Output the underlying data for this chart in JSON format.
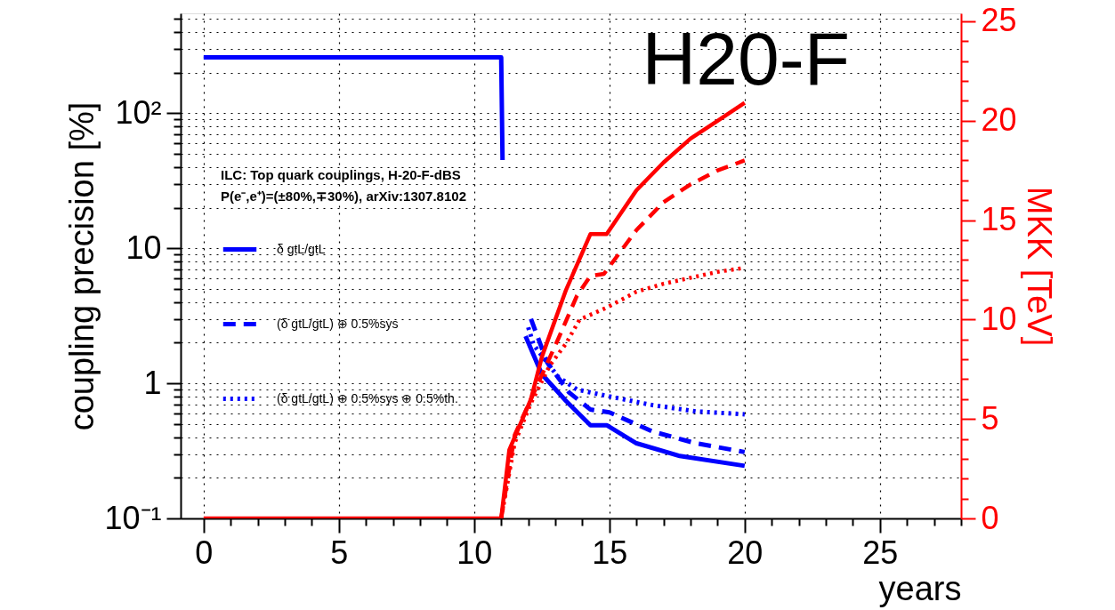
{
  "chart_data": {
    "type": "line",
    "xlabel": "years",
    "ylabel": "coupling precision [%]",
    "y2label": "MKK [TeV]",
    "legend_title": "ILC: Top quark couplings, H-20-F-dBS\nP(e⁻,e⁺)=(±80%,∓30%), arXiv:1307.8102",
    "legend": "left",
    "log": "y",
    "grid": true,
    "annotations": [
      "H20-F"
    ],
    "xlim": [
      -0.85,
      28
    ],
    "xticks": [
      0,
      {
        "value": 1,
        "label": null
      },
      {
        "value": 2,
        "label": null
      },
      {
        "value": 3,
        "label": null
      },
      {
        "value": 4,
        "label": null
      },
      5,
      {
        "value": 6,
        "label": null
      },
      {
        "value": 7,
        "label": null
      },
      {
        "value": 8,
        "label": null
      },
      {
        "value": 9,
        "label": null
      },
      10,
      {
        "value": 11,
        "label": null
      },
      {
        "value": 12,
        "label": null
      },
      {
        "value": 13,
        "label": null
      },
      {
        "value": 14,
        "label": null
      },
      15,
      {
        "value": 16,
        "label": null
      },
      {
        "value": 17,
        "label": null
      },
      {
        "value": 18,
        "label": null
      },
      {
        "value": 19,
        "label": null
      },
      20,
      {
        "value": 21,
        "label": null
      },
      {
        "value": 22,
        "label": null
      },
      {
        "value": 23,
        "label": null
      },
      {
        "value": 24,
        "label": null
      },
      25,
      {
        "value": 26,
        "label": null
      },
      {
        "value": 27,
        "label": null
      },
      {
        "value": 28,
        "label": null
      }
    ],
    "ylim": [
      0.1,
      550
    ],
    "yticks": [
      {
        "value": 0.1,
        "label": "10⁻¹"
      },
      {
        "value": 0.2,
        "label": null
      },
      {
        "value": 0.3,
        "label": null
      },
      {
        "value": 0.4,
        "label": null
      },
      {
        "value": 0.5,
        "label": null
      },
      {
        "value": 0.6,
        "label": null
      },
      {
        "value": 0.7,
        "label": null
      },
      {
        "value": 0.8,
        "label": null
      },
      {
        "value": 0.9,
        "label": null
      },
      1,
      {
        "value": 2,
        "label": null
      },
      {
        "value": 3,
        "label": null
      },
      {
        "value": 4,
        "label": null
      },
      {
        "value": 5,
        "label": null
      },
      {
        "value": 6,
        "label": null
      },
      {
        "value": 7,
        "label": null
      },
      {
        "value": 8,
        "label": null
      },
      {
        "value": 9,
        "label": null
      },
      10,
      {
        "value": 20,
        "label": null
      },
      {
        "value": 30,
        "label": null
      },
      {
        "value": 40,
        "label": null
      },
      {
        "value": 50,
        "label": null
      },
      {
        "value": 60,
        "label": null
      },
      {
        "value": 70,
        "label": null
      },
      {
        "value": 80,
        "label": null
      },
      {
        "value": 90,
        "label": null
      },
      {
        "value": 100,
        "label": "10²"
      },
      {
        "value": 200,
        "label": null
      },
      {
        "value": 300,
        "label": null
      },
      {
        "value": 400,
        "label": null
      },
      {
        "value": 500,
        "label": null
      }
    ],
    "y2lim": [
      0,
      25.4
    ],
    "y2ticks": [
      0,
      {
        "value": 1,
        "label": null
      },
      {
        "value": 2,
        "label": null
      },
      {
        "value": 3,
        "label": null
      },
      {
        "value": 4,
        "label": null
      },
      5,
      {
        "value": 6,
        "label": null
      },
      {
        "value": 7,
        "label": null
      },
      {
        "value": 8,
        "label": null
      },
      {
        "value": 9,
        "label": null
      },
      10,
      {
        "value": 11,
        "label": null
      },
      {
        "value": 12,
        "label": null
      },
      {
        "value": 13,
        "label": null
      },
      {
        "value": 14,
        "label": null
      },
      15,
      {
        "value": 16,
        "label": null
      },
      {
        "value": 17,
        "label": null
      },
      {
        "value": 18,
        "label": null
      },
      {
        "value": 19,
        "label": null
      },
      20,
      {
        "value": 21,
        "label": null
      },
      {
        "value": 22,
        "label": null
      },
      {
        "value": 23,
        "label": null
      },
      {
        "value": 24,
        "label": null
      },
      25
    ],
    "series": [
      {
        "name": "δ gtL/gtL",
        "color": "#0000ff",
        "line_style": "solid",
        "x": [
          0,
          11,
          11.05,
          11.5,
          11.9,
          12.5,
          13.4,
          14.3,
          14.9,
          16,
          17.6,
          20
        ],
        "values": [
          260,
          260,
          45,
          null,
          2.24,
          1.17,
          0.74,
          0.49,
          0.49,
          0.36,
          0.29,
          0.245
        ]
      },
      {
        "name": "(δ gtL/gtL) ⊕ 0.5%sys",
        "color": "#0000ff",
        "line_style": "dashed",
        "x": [
          12.1,
          12.7,
          13.5,
          14.3,
          15,
          16.6,
          18.2,
          20
        ],
        "values": [
          3.0,
          1.43,
          0.86,
          0.64,
          0.61,
          0.44,
          0.36,
          0.31
        ]
      },
      {
        "name": "(δ gtL/gtL) ⊕ 0.5%sys ⊕ 0.5%th.",
        "color": "#0000ff",
        "line_style": "dotted",
        "x": [
          12.0,
          12.2,
          13.1,
          13.8,
          15,
          16.6,
          18.2,
          20
        ],
        "values": [
          2.6,
          1.93,
          1.12,
          0.9,
          0.8,
          0.69,
          0.62,
          0.59
        ]
      },
      {
        "color": "#ff0000",
        "line_style": "solid",
        "axis": "y2",
        "x": [
          0,
          11,
          11.3,
          12.1,
          12.5,
          13.0,
          13.4,
          14.3,
          14.9,
          16,
          17,
          18,
          19,
          20
        ],
        "values": [
          0,
          0,
          3.45,
          6.0,
          8.1,
          10.0,
          11.5,
          14.3,
          14.3,
          16.5,
          17.9,
          19.1,
          20.0,
          20.9
        ]
      },
      {
        "color": "#ff0000",
        "line_style": "dashed",
        "axis": "y2",
        "x": [
          11,
          11.5,
          12.4,
          13.1,
          13.8,
          14.3,
          14.8,
          16,
          17,
          18,
          19,
          20
        ],
        "values": [
          0,
          4.2,
          6.9,
          9.0,
          11.2,
          12.2,
          12.3,
          14.5,
          15.9,
          16.8,
          17.5,
          18.0
        ]
      },
      {
        "color": "#ff0000",
        "line_style": "dotted",
        "axis": "y2",
        "x": [
          11,
          11.5,
          12.1,
          12.8,
          13.4,
          13.9,
          14.9,
          16,
          17,
          18,
          19,
          20
        ],
        "values": [
          0,
          3.8,
          5.8,
          7.7,
          8.8,
          10.0,
          10.6,
          11.4,
          11.8,
          12.1,
          12.4,
          12.6
        ]
      }
    ]
  }
}
